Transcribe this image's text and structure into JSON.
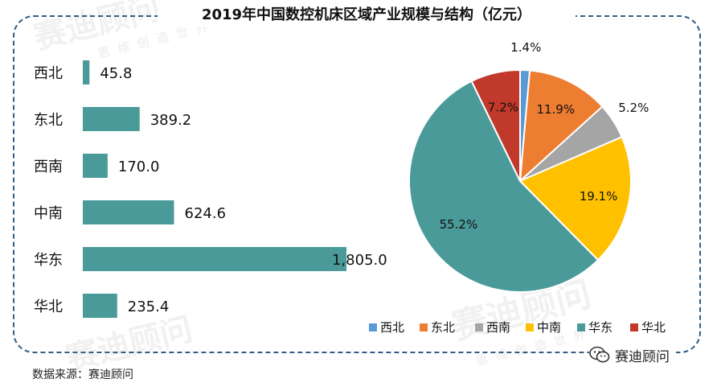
{
  "title": "2019年中国数控机床区域产业规模与结构（亿元）",
  "source": "数据来源：赛迪顾问",
  "watermark": {
    "text": "赛迪顾问",
    "sub": "思维创造世界",
    "wechat_account": "赛迪顾问",
    "icon": "wechat-icon"
  },
  "chart_data": [
    {
      "type": "bar",
      "orientation": "horizontal",
      "categories": [
        "西北",
        "东北",
        "西南",
        "中南",
        "华东",
        "华北"
      ],
      "values": [
        45.8,
        389.2,
        170.0,
        624.6,
        1805.0,
        235.4
      ],
      "value_labels": [
        "45.8",
        "389.2",
        "170.0",
        "624.6",
        "1,805.0",
        "235.4"
      ],
      "color": "#4a9a9a",
      "grid": false
    },
    {
      "type": "pie",
      "categories": [
        "西北",
        "东北",
        "西南",
        "中南",
        "华东",
        "华北"
      ],
      "values": [
        1.4,
        11.9,
        5.2,
        19.1,
        55.2,
        7.2
      ],
      "value_labels": [
        "1.4%",
        "11.9%",
        "5.2%",
        "19.1%",
        "55.2%",
        "7.2%"
      ],
      "colors": [
        "#5b9bd5",
        "#ed7d31",
        "#a5a5a5",
        "#ffc000",
        "#4a9a9a",
        "#c0392b"
      ],
      "legend": "bottom"
    }
  ]
}
